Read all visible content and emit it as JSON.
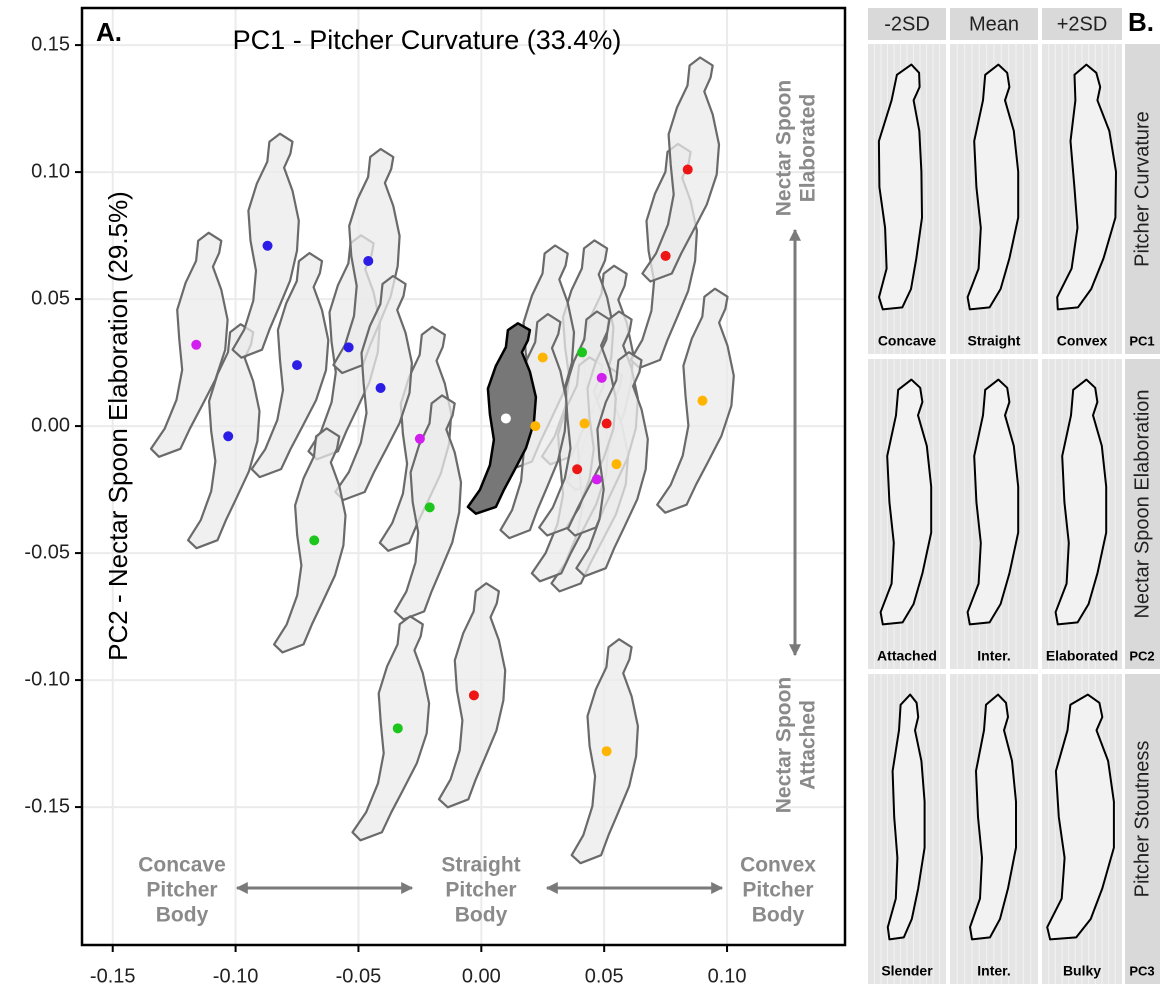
{
  "chart_data": {
    "type": "scatter",
    "panel_label": "A.",
    "title": "PC1 - Pitcher Curvature (33.4%)",
    "y_label": "PC2 - Nectar Spoon Elaboration  (29.5%)",
    "xlim": [
      -0.1625,
      0.148
    ],
    "ylim": [
      -0.2043,
      0.1646
    ],
    "xticks": [
      -0.15,
      {
        "value": -0.1,
        "label": "-0.10"
      },
      -0.05,
      {
        "value": 0,
        "label": "0.00"
      },
      0.05,
      {
        "value": 0.1,
        "label": "0.10"
      }
    ],
    "yticks": [
      {
        "value": -0.15,
        "label": "-0.15"
      },
      {
        "value": -0.1,
        "label": "-0.10"
      },
      -0.05,
      {
        "value": 0,
        "label": "0.00"
      },
      0.05,
      {
        "value": 0.1,
        "label": "0.10"
      },
      {
        "value": 0.15,
        "label": "0.15"
      }
    ],
    "grid": true,
    "series": [
      {
        "color": "#d21ff0",
        "x": [
          -0.116,
          -0.025,
          0.049,
          0.047
        ],
        "values": [
          0.032,
          -0.005,
          0.019,
          -0.021
        ]
      },
      {
        "color": "#2b1de6",
        "x": [
          -0.103,
          -0.087,
          -0.075,
          -0.054,
          -0.046,
          -0.041
        ],
        "values": [
          -0.004,
          0.071,
          0.024,
          0.031,
          0.065,
          0.015
        ]
      },
      {
        "color": "#1cc61c",
        "x": [
          -0.068,
          -0.021,
          -0.034,
          0.041
        ],
        "values": [
          -0.045,
          -0.032,
          -0.119,
          0.029
        ]
      },
      {
        "color": "#ee1515",
        "x": [
          -0.003,
          0.039,
          0.051,
          0.075,
          0.084
        ],
        "values": [
          -0.106,
          -0.017,
          0.001,
          0.067,
          0.101
        ]
      },
      {
        "color": "#ffb400",
        "x": [
          0.025,
          0.022,
          0.042,
          0.055,
          0.051,
          0.09
        ],
        "values": [
          0.027,
          0.0,
          0.001,
          -0.015,
          -0.128,
          0.01
        ]
      },
      {
        "color": "#ffffff",
        "x": [
          0.01
        ],
        "values": [
          0.003
        ]
      }
    ],
    "annotations": {
      "top_right": [
        "Nectar Spoon",
        "Elaborated"
      ],
      "bottom_right": [
        "Nectar Spoon",
        "Attached"
      ],
      "left": [
        "Concave",
        "Pitcher",
        "Body"
      ],
      "middle": [
        "Straight",
        "Pitcher",
        "Body"
      ],
      "right": [
        "Convex",
        "Pitcher",
        "Body"
      ]
    }
  },
  "panel_b": {
    "label": "B.",
    "columns": [
      "-2SD",
      "Mean",
      "+2SD"
    ],
    "rows": [
      {
        "title": "Pitcher Curvature",
        "code": "PC1",
        "cells": [
          "Concave",
          "Straight",
          "Convex"
        ]
      },
      {
        "title": "Nectar Spoon Elaboration",
        "code": "PC2",
        "cells": [
          "Attached",
          "Inter.",
          "Elaborated"
        ]
      },
      {
        "title": "Pitcher Stoutness",
        "code": "PC3",
        "cells": [
          "Slender",
          "Inter.",
          "Bulky"
        ]
      }
    ]
  }
}
